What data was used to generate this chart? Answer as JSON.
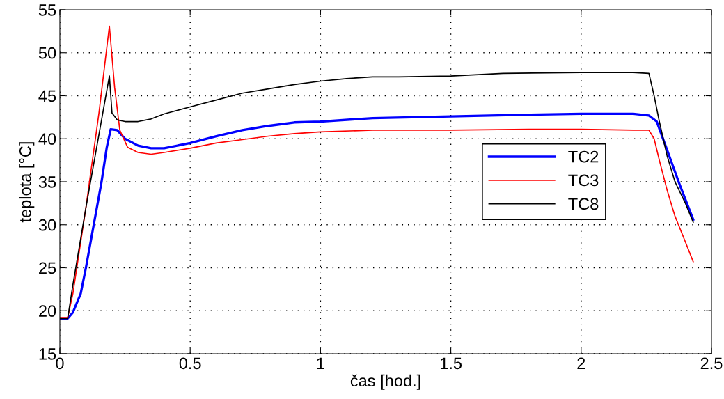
{
  "chart_data": {
    "type": "line",
    "xlabel": "čas [hod.]",
    "ylabel": "teplota [°C]",
    "xlim": [
      0,
      2.5
    ],
    "xticks": [
      0,
      0.5,
      1,
      1.5,
      2,
      2.5
    ],
    "ylim": [
      15,
      55
    ],
    "yticks": [
      15,
      20,
      25,
      30,
      35,
      40,
      45,
      50,
      55
    ],
    "grid": true,
    "legend": "right",
    "line_style": "solid",
    "marker": "none",
    "series": [
      {
        "name": "TC2",
        "color": "#0000ff",
        "x": [
          0,
          0.03,
          0.05,
          0.08,
          0.1,
          0.13,
          0.16,
          0.18,
          0.195,
          0.22,
          0.25,
          0.3,
          0.35,
          0.4,
          0.5,
          0.6,
          0.7,
          0.8,
          0.9,
          1.0,
          1.2,
          1.5,
          1.8,
          2.0,
          2.2,
          2.26,
          2.29,
          2.32,
          2.35,
          2.38,
          2.43
        ],
        "values": [
          19.1,
          19.1,
          19.8,
          22,
          25,
          30,
          35,
          39,
          41.1,
          41,
          40,
          39.2,
          38.9,
          38.9,
          39.5,
          40.3,
          41,
          41.5,
          41.9,
          42,
          42.4,
          42.6,
          42.8,
          42.9,
          42.9,
          42.7,
          42,
          39.5,
          37,
          34.5,
          30.6
        ]
      },
      {
        "name": "TC3",
        "color": "#ff0000",
        "x": [
          0,
          0.03,
          0.05,
          0.1,
          0.15,
          0.19,
          0.21,
          0.23,
          0.26,
          0.3,
          0.35,
          0.4,
          0.5,
          0.6,
          0.7,
          0.8,
          0.9,
          1.0,
          1.2,
          1.5,
          1.8,
          2.0,
          2.2,
          2.26,
          2.28,
          2.3,
          2.33,
          2.36,
          2.4,
          2.43
        ],
        "values": [
          19.2,
          19.2,
          22,
          32,
          43,
          53.1,
          46,
          41,
          39,
          38.4,
          38.2,
          38.4,
          38.9,
          39.5,
          39.9,
          40.3,
          40.6,
          40.8,
          41,
          41,
          41.1,
          41.1,
          41,
          41,
          40,
          37.5,
          34,
          31,
          28,
          25.7
        ]
      },
      {
        "name": "TC8",
        "color": "#000000",
        "x": [
          0,
          0.03,
          0.05,
          0.1,
          0.15,
          0.19,
          0.2,
          0.22,
          0.25,
          0.3,
          0.35,
          0.4,
          0.5,
          0.6,
          0.7,
          0.8,
          0.9,
          1.0,
          1.1,
          1.2,
          1.3,
          1.5,
          1.7,
          2.0,
          2.2,
          2.26,
          2.28,
          2.3,
          2.33,
          2.36,
          2.4,
          2.43
        ],
        "values": [
          19.1,
          19.1,
          23,
          32,
          40.5,
          47.3,
          43,
          42.2,
          42,
          42,
          42.3,
          42.9,
          43.7,
          44.5,
          45.3,
          45.8,
          46.3,
          46.7,
          47,
          47.2,
          47.2,
          47.3,
          47.6,
          47.7,
          47.7,
          47.6,
          45,
          42,
          38,
          35,
          32.5,
          30.3
        ]
      }
    ]
  }
}
